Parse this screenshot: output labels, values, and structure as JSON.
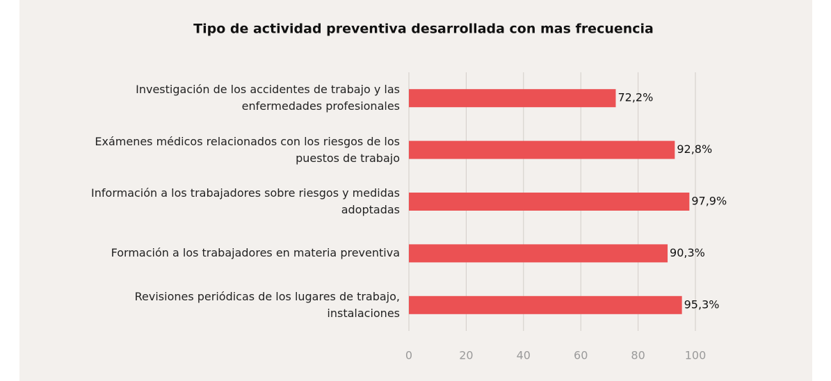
{
  "chart_data": {
    "type": "bar",
    "orientation": "horizontal",
    "title": "Tipo de actividad preventiva desarrollada con mas frecuencia",
    "categories": [
      "Investigación de los accidentes de trabajo y las enfermedades profesionales",
      "Exámenes médicos relacionados con los riesgos de los puestos de trabajo",
      "Información a los trabajadores sobre riesgos y medidas adoptadas",
      "Formación a los trabajadores en materia preventiva",
      "Revisiones periódicas de los lugares de trabajo, instalaciones"
    ],
    "values": [
      72.2,
      92.8,
      97.9,
      90.3,
      95.3
    ],
    "value_labels": [
      "72,2%",
      "92,8%",
      "97,9%",
      "90,3%",
      "95,3%"
    ],
    "color": "#eb5153",
    "xlim": [
      0,
      100
    ],
    "xticks": [
      0,
      20,
      40,
      60,
      80,
      100
    ],
    "grid": true
  }
}
